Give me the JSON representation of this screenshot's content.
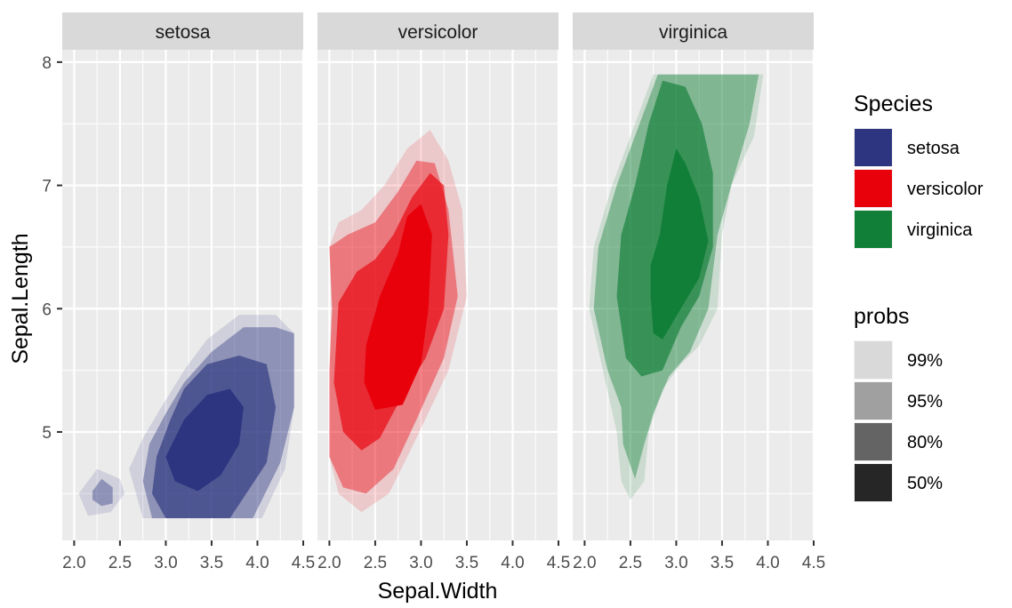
{
  "chart_data": {
    "type": "contour",
    "xlabel": "Sepal.Width",
    "ylabel": "Sepal.Length",
    "xlim": [
      1.87,
      4.5
    ],
    "ylim": [
      4.12,
      8.1
    ],
    "x_ticks": [
      2.0,
      2.5,
      3.0,
      3.5,
      4.0,
      4.5
    ],
    "x_tick_labels": [
      "2.0",
      "2.5",
      "3.0",
      "3.5",
      "4.0",
      "4.5"
    ],
    "y_ticks": [
      5,
      6,
      7,
      8
    ],
    "y_tick_labels": [
      "5",
      "6",
      "7",
      "8"
    ],
    "grid": true,
    "legend_placement": "right",
    "facets": [
      "setosa",
      "versicolor",
      "virginica"
    ],
    "species_legend": {
      "title": "Species",
      "entries": [
        {
          "label": "setosa",
          "color": "#2D3580"
        },
        {
          "label": "versicolor",
          "color": "#E8000B"
        },
        {
          "label": "virginica",
          "color": "#117F38"
        }
      ]
    },
    "probs_legend": {
      "title": "probs",
      "entries": [
        {
          "label": "99%",
          "level": 0.99,
          "alpha": 0.15,
          "swatch": "#d9d9d9"
        },
        {
          "label": "95%",
          "level": 0.95,
          "alpha": 0.4,
          "swatch": "#a0a0a0"
        },
        {
          "label": "80%",
          "level": 0.8,
          "alpha": 0.65,
          "swatch": "#646464"
        },
        {
          "label": "50%",
          "level": 0.5,
          "alpha": 1.0,
          "swatch": "#262626"
        }
      ]
    },
    "series": [
      {
        "name": "setosa",
        "color": "#2D3580",
        "contours": [
          {
            "prob": "99%",
            "polygons": [
              [
                [
                  2.75,
                  4.3
                ],
                [
                  4.05,
                  4.3
                ],
                [
                  4.3,
                  4.7
                ],
                [
                  4.4,
                  5.2
                ],
                [
                  4.4,
                  5.8
                ],
                [
                  4.2,
                  5.95
                ],
                [
                  3.8,
                  5.95
                ],
                [
                  3.45,
                  5.75
                ],
                [
                  3.2,
                  5.5
                ],
                [
                  2.95,
                  5.2
                ],
                [
                  2.75,
                  4.95
                ],
                [
                  2.6,
                  4.7
                ]
              ],
              [
                [
                  2.05,
                  4.5
                ],
                [
                  2.25,
                  4.7
                ],
                [
                  2.5,
                  4.62
                ],
                [
                  2.55,
                  4.5
                ],
                [
                  2.4,
                  4.35
                ],
                [
                  2.15,
                  4.32
                ]
              ]
            ]
          },
          {
            "prob": "95%",
            "polygons": [
              [
                [
                  2.85,
                  4.3
                ],
                [
                  3.95,
                  4.3
                ],
                [
                  4.25,
                  4.75
                ],
                [
                  4.4,
                  5.2
                ],
                [
                  4.4,
                  5.8
                ],
                [
                  4.2,
                  5.85
                ],
                [
                  3.85,
                  5.85
                ],
                [
                  3.5,
                  5.65
                ],
                [
                  3.2,
                  5.4
                ],
                [
                  3.0,
                  5.15
                ],
                [
                  2.82,
                  4.9
                ],
                [
                  2.75,
                  4.6
                ]
              ],
              [
                [
                  2.2,
                  4.52
                ],
                [
                  2.3,
                  4.62
                ],
                [
                  2.42,
                  4.55
                ],
                [
                  2.42,
                  4.42
                ],
                [
                  2.3,
                  4.4
                ],
                [
                  2.2,
                  4.45
                ]
              ]
            ]
          },
          {
            "prob": "80%",
            "polygons": [
              [
                [
                  3.0,
                  4.3
                ],
                [
                  3.7,
                  4.3
                ],
                [
                  4.1,
                  4.75
                ],
                [
                  4.2,
                  5.2
                ],
                [
                  4.1,
                  5.55
                ],
                [
                  3.8,
                  5.62
                ],
                [
                  3.45,
                  5.55
                ],
                [
                  3.2,
                  5.35
                ],
                [
                  3.05,
                  5.1
                ],
                [
                  2.9,
                  4.8
                ],
                [
                  2.85,
                  4.5
                ]
              ]
            ]
          },
          {
            "prob": "50%",
            "polygons": [
              [
                [
                  3.0,
                  4.8
                ],
                [
                  3.1,
                  4.6
                ],
                [
                  3.35,
                  4.52
                ],
                [
                  3.6,
                  4.65
                ],
                [
                  3.8,
                  4.9
                ],
                [
                  3.85,
                  5.2
                ],
                [
                  3.7,
                  5.35
                ],
                [
                  3.45,
                  5.3
                ],
                [
                  3.2,
                  5.1
                ]
              ]
            ]
          }
        ]
      },
      {
        "name": "versicolor",
        "color": "#E8000B",
        "contours": [
          {
            "prob": "99%",
            "polygons": [
              [
                [
                  2.0,
                  4.8
                ],
                [
                  2.1,
                  4.5
                ],
                [
                  2.35,
                  4.35
                ],
                [
                  2.65,
                  4.5
                ],
                [
                  2.95,
                  4.95
                ],
                [
                  3.3,
                  5.5
                ],
                [
                  3.5,
                  6.1
                ],
                [
                  3.45,
                  6.8
                ],
                [
                  3.3,
                  7.2
                ],
                [
                  3.1,
                  7.45
                ],
                [
                  2.85,
                  7.3
                ],
                [
                  2.6,
                  7.0
                ],
                [
                  2.35,
                  6.8
                ],
                [
                  2.1,
                  6.7
                ],
                [
                  2.0,
                  6.5
                ],
                [
                  2.02,
                  6.0
                ],
                [
                  2.0,
                  5.5
                ]
              ]
            ]
          },
          {
            "prob": "95%",
            "polygons": [
              [
                [
                  2.0,
                  4.8
                ],
                [
                  2.15,
                  4.55
                ],
                [
                  2.4,
                  4.5
                ],
                [
                  2.7,
                  4.7
                ],
                [
                  2.95,
                  5.1
                ],
                [
                  3.25,
                  5.6
                ],
                [
                  3.4,
                  6.1
                ],
                [
                  3.3,
                  6.8
                ],
                [
                  3.15,
                  7.18
                ],
                [
                  2.95,
                  7.2
                ],
                [
                  2.75,
                  6.95
                ],
                [
                  2.5,
                  6.7
                ],
                [
                  2.2,
                  6.6
                ],
                [
                  2.0,
                  6.5
                ],
                [
                  2.03,
                  6.0
                ],
                [
                  2.0,
                  5.5
                ]
              ]
            ]
          },
          {
            "prob": "80%",
            "polygons": [
              [
                [
                  2.05,
                  5.4
                ],
                [
                  2.15,
                  5.0
                ],
                [
                  2.35,
                  4.85
                ],
                [
                  2.55,
                  4.95
                ],
                [
                  2.8,
                  5.3
                ],
                [
                  3.05,
                  5.6
                ],
                [
                  3.25,
                  6.0
                ],
                [
                  3.3,
                  6.6
                ],
                [
                  3.25,
                  7.0
                ],
                [
                  3.1,
                  7.1
                ],
                [
                  2.9,
                  6.9
                ],
                [
                  2.7,
                  6.6
                ],
                [
                  2.5,
                  6.4
                ],
                [
                  2.3,
                  6.3
                ],
                [
                  2.1,
                  6.05
                ]
              ]
            ]
          },
          {
            "prob": "50%",
            "polygons": [
              [
                [
                  2.38,
                  5.4
                ],
                [
                  2.5,
                  5.18
                ],
                [
                  2.8,
                  5.22
                ],
                [
                  3.0,
                  5.55
                ],
                [
                  3.08,
                  6.0
                ],
                [
                  3.12,
                  6.6
                ],
                [
                  3.0,
                  6.85
                ],
                [
                  2.85,
                  6.75
                ],
                [
                  2.75,
                  6.45
                ],
                [
                  2.55,
                  6.1
                ],
                [
                  2.4,
                  5.7
                ]
              ]
            ]
          }
        ]
      },
      {
        "name": "virginica",
        "color": "#117F38",
        "contours": [
          {
            "prob": "99%",
            "polygons": [
              [
                [
                  2.4,
                  4.6
                ],
                [
                  2.5,
                  4.45
                ],
                [
                  2.65,
                  4.6
                ],
                [
                  2.7,
                  5.0
                ],
                [
                  2.85,
                  5.35
                ],
                [
                  3.05,
                  5.55
                ],
                [
                  3.25,
                  5.7
                ],
                [
                  3.45,
                  6.0
                ],
                [
                  3.5,
                  6.6
                ],
                [
                  3.6,
                  7.0
                ],
                [
                  3.85,
                  7.4
                ],
                [
                  3.95,
                  7.9
                ],
                [
                  2.75,
                  7.9
                ],
                [
                  2.55,
                  7.5
                ],
                [
                  2.3,
                  7.0
                ],
                [
                  2.1,
                  6.5
                ],
                [
                  2.05,
                  6.0
                ],
                [
                  2.2,
                  5.5
                ],
                [
                  2.35,
                  5.0
                ]
              ]
            ]
          },
          {
            "prob": "95%",
            "polygons": [
              [
                [
                  2.42,
                  4.9
                ],
                [
                  2.55,
                  4.62
                ],
                [
                  2.65,
                  4.9
                ],
                [
                  2.75,
                  5.15
                ],
                [
                  2.92,
                  5.45
                ],
                [
                  3.15,
                  5.65
                ],
                [
                  3.35,
                  6.0
                ],
                [
                  3.45,
                  6.6
                ],
                [
                  3.6,
                  7.0
                ],
                [
                  3.8,
                  7.5
                ],
                [
                  3.9,
                  7.9
                ],
                [
                  2.8,
                  7.9
                ],
                [
                  2.6,
                  7.5
                ],
                [
                  2.35,
                  7.0
                ],
                [
                  2.15,
                  6.5
                ],
                [
                  2.1,
                  6.0
                ],
                [
                  2.25,
                  5.5
                ],
                [
                  2.4,
                  5.2
                ]
              ]
            ]
          },
          {
            "prob": "80%",
            "polygons": [
              [
                [
                  2.45,
                  5.6
                ],
                [
                  2.62,
                  5.45
                ],
                [
                  2.85,
                  5.5
                ],
                [
                  3.05,
                  5.85
                ],
                [
                  3.25,
                  6.1
                ],
                [
                  3.4,
                  6.5
                ],
                [
                  3.4,
                  7.1
                ],
                [
                  3.28,
                  7.5
                ],
                [
                  3.1,
                  7.8
                ],
                [
                  2.85,
                  7.85
                ],
                [
                  2.7,
                  7.5
                ],
                [
                  2.55,
                  7.0
                ],
                [
                  2.4,
                  6.6
                ],
                [
                  2.35,
                  6.1
                ]
              ]
            ]
          },
          {
            "prob": "50%",
            "polygons": [
              [
                [
                  2.72,
                  6.1
                ],
                [
                  2.75,
                  5.8
                ],
                [
                  2.85,
                  5.75
                ],
                [
                  3.05,
                  6.0
                ],
                [
                  3.25,
                  6.25
                ],
                [
                  3.35,
                  6.55
                ],
                [
                  3.25,
                  6.9
                ],
                [
                  3.1,
                  7.18
                ],
                [
                  3.0,
                  7.3
                ],
                [
                  2.9,
                  7.0
                ],
                [
                  2.82,
                  6.6
                ],
                [
                  2.72,
                  6.35
                ]
              ]
            ]
          }
        ]
      }
    ]
  }
}
